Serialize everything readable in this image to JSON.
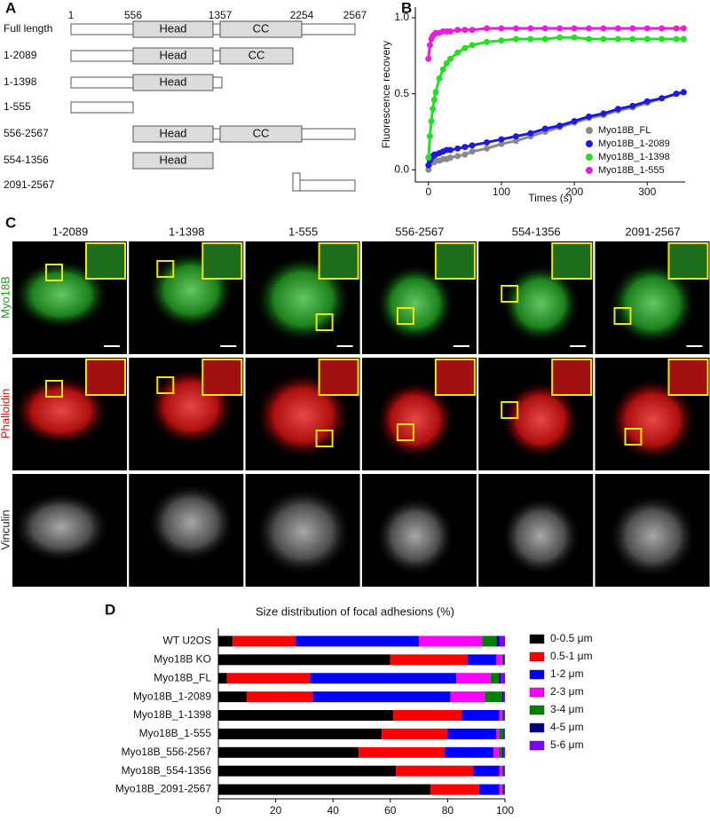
{
  "panel_a": {
    "label": "A",
    "positions": [
      1,
      556,
      1357,
      2254,
      2567
    ],
    "constructs": [
      {
        "name": "Full length",
        "domains": [
          "Head",
          "CC"
        ]
      },
      {
        "name": "1-2089",
        "domains": [
          "Head",
          "CC"
        ]
      },
      {
        "name": "1-1398",
        "domains": [
          "Head"
        ]
      },
      {
        "name": "1-555",
        "domains": []
      },
      {
        "name": "556-2567",
        "domains": [
          "Head",
          "CC"
        ]
      },
      {
        "name": "554-1356",
        "domains": [
          "Head"
        ]
      },
      {
        "name": "2091-2567",
        "domains": []
      }
    ]
  },
  "chart_data": [
    {
      "type": "line",
      "panel_label": "B",
      "y_label": "Fluorescence recovery",
      "x_label": "Times (s)",
      "x": [
        0,
        2,
        4,
        6,
        8,
        10,
        15,
        20,
        25,
        30,
        40,
        50,
        60,
        80,
        100,
        120,
        140,
        160,
        180,
        200,
        220,
        240,
        260,
        280,
        300,
        320,
        340,
        350
      ],
      "series": [
        {
          "name": "Myo18B_FL",
          "color": "#8a8a8a",
          "values": [
            0.0,
            0.04,
            0.05,
            0.05,
            0.05,
            0.06,
            0.06,
            0.07,
            0.07,
            0.08,
            0.09,
            0.1,
            0.12,
            0.14,
            0.17,
            0.19,
            0.22,
            0.25,
            0.28,
            0.31,
            0.34,
            0.36,
            0.39,
            0.41,
            0.44,
            0.47,
            0.5,
            0.51
          ]
        },
        {
          "name": "Myo18B_1-2089",
          "color": "#1a1ae0",
          "values": [
            0.03,
            0.06,
            0.08,
            0.09,
            0.1,
            0.1,
            0.11,
            0.12,
            0.13,
            0.13,
            0.14,
            0.15,
            0.16,
            0.18,
            0.2,
            0.22,
            0.24,
            0.27,
            0.29,
            0.32,
            0.35,
            0.37,
            0.4,
            0.42,
            0.45,
            0.47,
            0.5,
            0.51
          ]
        },
        {
          "name": "Myo18B_1-1398",
          "color": "#22e022",
          "values": [
            0.08,
            0.22,
            0.32,
            0.4,
            0.46,
            0.51,
            0.6,
            0.66,
            0.7,
            0.73,
            0.77,
            0.8,
            0.82,
            0.84,
            0.85,
            0.86,
            0.86,
            0.86,
            0.87,
            0.87,
            0.86,
            0.86,
            0.86,
            0.86,
            0.86,
            0.86,
            0.86,
            0.86
          ]
        },
        {
          "name": "Myo18B_1-555",
          "color": "#e81fd8",
          "values": [
            0.73,
            0.82,
            0.86,
            0.88,
            0.89,
            0.9,
            0.9,
            0.91,
            0.91,
            0.91,
            0.92,
            0.92,
            0.92,
            0.93,
            0.93,
            0.93,
            0.93,
            0.93,
            0.93,
            0.93,
            0.93,
            0.93,
            0.93,
            0.93,
            0.93,
            0.93,
            0.93,
            0.93
          ]
        }
      ],
      "xlim": [
        -18,
        352
      ],
      "xticks": [
        0,
        100,
        200,
        300
      ],
      "ylim": [
        -0.08,
        1.07
      ],
      "yticks": [
        {
          "value": 0,
          "label": "0.0"
        },
        0.5,
        {
          "value": 1,
          "label": "1.0"
        }
      ],
      "legend": "lower right"
    },
    {
      "type": "stacked_barh",
      "panel_label": "D",
      "title": "Size distribution of focal adhesions (%)",
      "categories": [
        "WT U2OS",
        "Myo18B KO",
        "Myo18B_FL",
        "Myo18B_1-2089",
        "Myo18B_1-1398",
        "Myo18B_1-555",
        "Myo18B_556-2567",
        "Myo18B_554-1356",
        "Myo18B_2091-2567"
      ],
      "series": [
        {
          "name": "0-0.5 μm",
          "color": "#000000",
          "values": [
            5,
            60,
            3,
            10,
            61,
            57,
            49,
            62,
            74
          ]
        },
        {
          "name": "0.5-1 μm",
          "color": "#ff0000",
          "values": [
            22,
            27,
            29,
            23,
            24,
            23,
            30,
            27,
            17
          ]
        },
        {
          "name": "1-2 μm",
          "color": "#0000ff",
          "values": [
            43,
            10,
            51,
            48,
            13,
            17,
            17,
            9,
            7
          ]
        },
        {
          "name": "2-3 μm",
          "color": "#ff00ff",
          "values": [
            22,
            2,
            12,
            12,
            1,
            1,
            2,
            1,
            1
          ]
        },
        {
          "name": "3-4 μm",
          "color": "#008000",
          "values": [
            5,
            0.5,
            3,
            6,
            0.5,
            1.5,
            1,
            0.5,
            0.5
          ]
        },
        {
          "name": "4-5 μm",
          "color": "#000080",
          "values": [
            1,
            0.3,
            0.5,
            0.5,
            0.2,
            0.2,
            0.5,
            0.2,
            0.2
          ]
        },
        {
          "name": "5-6 μm",
          "color": "#8000ff",
          "values": [
            2,
            0.2,
            1.5,
            0.5,
            0.3,
            0.3,
            0.5,
            0.3,
            0.3
          ]
        }
      ],
      "xlim": [
        0,
        100
      ],
      "xticks": [
        0,
        20,
        40,
        60,
        80,
        100
      ],
      "legend": "right"
    }
  ],
  "panel_c": {
    "label": "C",
    "columns": [
      "1-2089",
      "1-1398",
      "1-555",
      "556-2567",
      "554-1356",
      "2091-2567"
    ],
    "rows": [
      "Myo18B",
      "Phalloidin",
      "Vinculin"
    ]
  }
}
